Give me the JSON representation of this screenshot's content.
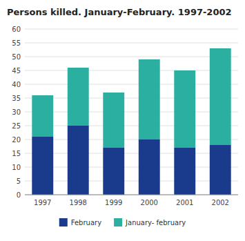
{
  "chart_data": {
    "type": "bar",
    "stacked": true,
    "title": "Persons killed. January-February. 1997-2002",
    "categories": [
      "1997",
      "1998",
      "1999",
      "2000",
      "2001",
      "2002"
    ],
    "series": [
      {
        "name": "February",
        "color": "#1a3a8c",
        "values": [
          21,
          25,
          17,
          20,
          17,
          18
        ]
      },
      {
        "name": "January- february",
        "color": "#2aafa0",
        "values": [
          15,
          21,
          20,
          29,
          28,
          35
        ]
      }
    ],
    "ylim": [
      0,
      60
    ],
    "yticks": [
      0,
      5,
      10,
      15,
      20,
      25,
      30,
      35,
      40,
      45,
      50,
      55,
      60
    ],
    "grid": true,
    "legend": "bottom"
  }
}
